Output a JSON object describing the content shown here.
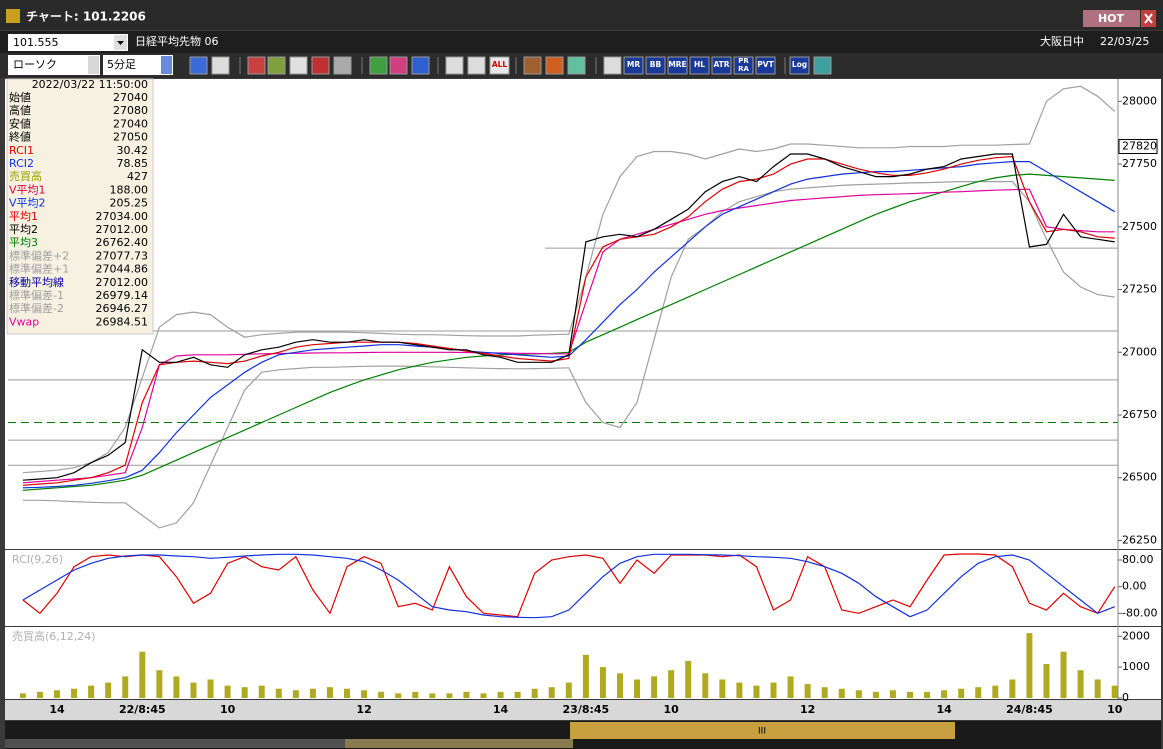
{
  "window": {
    "title": "チャート: 101.2206",
    "hot": "HOT"
  },
  "header": {
    "code": "101.555",
    "name": "日経平均先物 06",
    "market": "大阪日中",
    "date": "22/03/25"
  },
  "toolbar": {
    "chart_style": "ローソク",
    "period": "5分足",
    "buttons": [
      "ALL",
      "MR",
      "BB",
      "MRE",
      "HL",
      "ATR",
      "PR",
      "RA",
      "PVT",
      "Log"
    ]
  },
  "info_panel": {
    "datetime": "2022/03/22 11:50:00",
    "rows": [
      {
        "label": "始値",
        "value": "27040",
        "color": "#000000"
      },
      {
        "label": "高値",
        "value": "27080",
        "color": "#000000"
      },
      {
        "label": "安値",
        "value": "27040",
        "color": "#000000"
      },
      {
        "label": "終値",
        "value": "27050",
        "color": "#000000"
      },
      {
        "label": "RCI1",
        "value": "30.42",
        "color": "#e00000"
      },
      {
        "label": "RCI2",
        "value": "78.85",
        "color": "#1030e0"
      },
      {
        "label": "売買高",
        "value": "427",
        "color": "#a0a000"
      },
      {
        "label": "V平均1",
        "value": "188.00",
        "color": "#e00040"
      },
      {
        "label": "V平均2",
        "value": "205.25",
        "color": "#1030e0"
      },
      {
        "label": "平均1",
        "value": "27034.00",
        "color": "#e00000"
      },
      {
        "label": "平均2",
        "value": "27012.00",
        "color": "#000000"
      },
      {
        "label": "平均3",
        "value": "26762.40",
        "color": "#008000"
      },
      {
        "label": "標準偏差+2",
        "value": "27077.73",
        "color": "#a0a0a0"
      },
      {
        "label": "標準偏差+1",
        "value": "27044.86",
        "color": "#a0a0a0"
      },
      {
        "label": "移動平均線",
        "value": "27012.00",
        "color": "#0000a0"
      },
      {
        "label": "標準偏差-1",
        "value": "26979.14",
        "color": "#a0a0a0"
      },
      {
        "label": "標準偏差-2",
        "value": "26946.27",
        "color": "#a0a0a0"
      },
      {
        "label": "Vwap",
        "value": "26984.51",
        "color": "#e000a0"
      }
    ]
  },
  "chart_data": [
    {
      "type": "line",
      "ylim": [
        26220,
        28085
      ],
      "yticks": [
        26250,
        26500,
        26750,
        27000,
        27250,
        27500,
        27750,
        28000
      ],
      "price_marker": 27820,
      "hlines": [
        27415,
        27085,
        26890,
        26650,
        26550
      ],
      "dashed_line": 26720,
      "dashed_color": "#008000",
      "series": [
        {
          "color": "#a0a0a0",
          "values": [
            26520,
            26525,
            26530,
            26540,
            26560,
            26600,
            26700,
            26900,
            27100,
            27150,
            27160,
            27150,
            27100,
            27060,
            27070,
            27075,
            27080,
            27080,
            27080,
            27080,
            27078,
            27075,
            27072,
            27070,
            27070,
            27068,
            27066,
            27065,
            27065,
            27065,
            27068,
            27070,
            27072,
            27300,
            27550,
            27700,
            27780,
            27800,
            27800,
            27790,
            27770,
            27790,
            27810,
            27800,
            27810,
            27830,
            27830,
            27825,
            27820,
            27815,
            27815,
            27815,
            27820,
            27820,
            27820,
            27825,
            27825,
            27825,
            27828,
            27830,
            28000,
            28050,
            28060,
            28020,
            27960
          ]
        },
        {
          "color": "#a0a0a0",
          "values": [
            26410,
            26410,
            26408,
            26405,
            26402,
            26400,
            26400,
            26350,
            26300,
            26320,
            26400,
            26550,
            26700,
            26850,
            26920,
            26930,
            26935,
            26940,
            26940,
            26942,
            26944,
            26945,
            26945,
            26944,
            26942,
            26940,
            26938,
            26936,
            26935,
            26934,
            26935,
            26936,
            26938,
            26800,
            26720,
            26700,
            26800,
            27050,
            27300,
            27450,
            27500,
            27560,
            27600,
            27620,
            27640,
            27650,
            27655,
            27660,
            27665,
            27668,
            27670,
            27672,
            27675,
            27676,
            27678,
            27680,
            27680,
            27680,
            27680,
            27600,
            27450,
            27320,
            27260,
            27230,
            27220
          ]
        },
        {
          "color": "#008000",
          "values": [
            26450,
            26455,
            26460,
            26465,
            26470,
            26480,
            26490,
            26510,
            26540,
            26570,
            26600,
            26630,
            26660,
            26690,
            26720,
            26750,
            26780,
            26810,
            26840,
            26865,
            26890,
            26910,
            26930,
            26945,
            26960,
            26970,
            26980,
            26985,
            26990,
            26992,
            26994,
            26996,
            27000,
            27040,
            27070,
            27100,
            27130,
            27160,
            27190,
            27220,
            27250,
            27280,
            27310,
            27340,
            27370,
            27400,
            27430,
            27460,
            27490,
            27520,
            27550,
            27575,
            27600,
            27620,
            27640,
            27660,
            27680,
            27695,
            27705,
            27710,
            27705,
            27700,
            27695,
            27690,
            27685
          ]
        },
        {
          "color": "#e000a0",
          "values": [
            26480,
            26485,
            26490,
            26495,
            26500,
            26510,
            26520,
            26700,
            26950,
            26985,
            26990,
            26990,
            26990,
            26992,
            26994,
            26995,
            26996,
            26997,
            26998,
            26998,
            26999,
            27000,
            27000,
            27000,
            27000,
            27000,
            26999,
            26998,
            26997,
            26996,
            26995,
            26994,
            26994,
            27200,
            27400,
            27450,
            27470,
            27490,
            27510,
            27530,
            27550,
            27565,
            27575,
            27585,
            27595,
            27605,
            27610,
            27615,
            27620,
            27625,
            27628,
            27630,
            27632,
            27635,
            27638,
            27640,
            27643,
            27646,
            27648,
            27650,
            27500,
            27490,
            27485,
            27480,
            27480
          ]
        },
        {
          "color": "#1030e0",
          "values": [
            26460,
            26462,
            26465,
            26470,
            26478,
            26488,
            26500,
            26530,
            26600,
            26680,
            26750,
            26820,
            26870,
            26920,
            26960,
            26990,
            27000,
            27010,
            27015,
            27020,
            27025,
            27030,
            27030,
            27025,
            27020,
            27015,
            27005,
            27000,
            26995,
            26990,
            26985,
            26980,
            26985,
            27050,
            27120,
            27190,
            27250,
            27320,
            27380,
            27440,
            27500,
            27550,
            27580,
            27610,
            27640,
            27670,
            27690,
            27700,
            27710,
            27715,
            27720,
            27720,
            27725,
            27730,
            27735,
            27740,
            27750,
            27755,
            27760,
            27760,
            27720,
            27680,
            27640,
            27600,
            27560
          ]
        },
        {
          "color": "#e00000",
          "values": [
            26470,
            26475,
            26480,
            26490,
            26500,
            26520,
            26550,
            26800,
            26950,
            26960,
            26965,
            26960,
            26955,
            26965,
            26985,
            27000,
            27020,
            27030,
            27035,
            27040,
            27040,
            27040,
            27040,
            27035,
            27025,
            27015,
            27005,
            26995,
            26985,
            26975,
            26970,
            26965,
            26975,
            27300,
            27420,
            27450,
            27460,
            27470,
            27500,
            27540,
            27600,
            27650,
            27680,
            27690,
            27710,
            27750,
            27770,
            27770,
            27750,
            27730,
            27715,
            27705,
            27705,
            27715,
            27730,
            27750,
            27765,
            27775,
            27780,
            27600,
            27480,
            27490,
            27480,
            27460,
            27455
          ]
        },
        {
          "color": "#000000",
          "values": [
            26490,
            26495,
            26500,
            26520,
            26560,
            26590,
            26640,
            27010,
            26960,
            26960,
            26980,
            26950,
            26940,
            26990,
            27010,
            27020,
            27040,
            27050,
            27040,
            27040,
            27050,
            27040,
            27040,
            27030,
            27020,
            27010,
            27010,
            26990,
            26980,
            26960,
            26960,
            26960,
            26990,
            27440,
            27460,
            27470,
            27460,
            27490,
            27530,
            27570,
            27640,
            27680,
            27700,
            27680,
            27740,
            27790,
            27790,
            27770,
            27740,
            27720,
            27700,
            27700,
            27710,
            27730,
            27740,
            27770,
            27780,
            27790,
            27790,
            27420,
            27430,
            27550,
            27460,
            27450,
            27440
          ]
        }
      ]
    },
    {
      "type": "line",
      "title": "RCI(9,26)",
      "ylim": [
        -115,
        110
      ],
      "yticks": [
        {
          "value": 80,
          "label": "80.00"
        },
        {
          "value": 0,
          "label": "0.00"
        },
        {
          "value": -80,
          "label": "-80.00"
        }
      ],
      "series": [
        {
          "color": "#e00000",
          "values": [
            -40,
            -80,
            -20,
            60,
            90,
            95,
            90,
            95,
            90,
            30,
            -50,
            -20,
            70,
            90,
            60,
            50,
            90,
            -10,
            -80,
            60,
            90,
            70,
            -60,
            -50,
            -70,
            60,
            -30,
            -80,
            -85,
            -90,
            40,
            80,
            90,
            95,
            85,
            10,
            80,
            40,
            95,
            95,
            95,
            90,
            95,
            60,
            -70,
            -40,
            90,
            60,
            -70,
            -80,
            -60,
            -40,
            -60,
            20,
            95,
            98,
            98,
            95,
            60,
            -50,
            -70,
            -20,
            -60,
            -80,
            0
          ]
        },
        {
          "color": "#1030e0",
          "values": [
            -40,
            -10,
            20,
            50,
            70,
            85,
            92,
            95,
            95,
            92,
            90,
            85,
            88,
            92,
            95,
            97,
            97,
            95,
            90,
            85,
            75,
            50,
            20,
            -20,
            -60,
            -70,
            -75,
            -85,
            -90,
            -92,
            -93,
            -90,
            -70,
            -20,
            30,
            70,
            90,
            97,
            97,
            97,
            96,
            95,
            93,
            90,
            88,
            85,
            75,
            60,
            40,
            10,
            -30,
            -60,
            -90,
            -70,
            -20,
            30,
            70,
            90,
            95,
            80,
            40,
            0,
            -40,
            -80,
            -60
          ]
        }
      ]
    },
    {
      "type": "bar",
      "title": "売買高(6,12,24)",
      "ylim": [
        0,
        2300
      ],
      "yticks": [
        0,
        1000,
        2000
      ],
      "color": "#b0aa20",
      "categories": [
        null,
        null,
        "14",
        null,
        null,
        null,
        null,
        "22/8:45",
        null,
        null,
        null,
        null,
        "10",
        null,
        null,
        null,
        null,
        null,
        null,
        null,
        "12",
        null,
        null,
        null,
        null,
        null,
        null,
        null,
        "14",
        null,
        null,
        null,
        null,
        "23/8:45",
        null,
        null,
        null,
        null,
        "10",
        null,
        null,
        null,
        null,
        null,
        null,
        null,
        "12",
        null,
        null,
        null,
        null,
        null,
        null,
        null,
        "14",
        null,
        null,
        null,
        null,
        "24/8:45",
        null,
        null,
        null,
        null,
        "10"
      ],
      "values": [
        150,
        200,
        250,
        300,
        400,
        500,
        700,
        1500,
        900,
        700,
        500,
        600,
        400,
        350,
        400,
        300,
        250,
        300,
        350,
        300,
        250,
        200,
        150,
        200,
        150,
        150,
        200,
        150,
        200,
        200,
        300,
        350,
        500,
        1400,
        1000,
        800,
        600,
        700,
        900,
        1200,
        800,
        600,
        500,
        400,
        500,
        700,
        450,
        350,
        300,
        250,
        200,
        250,
        200,
        200,
        250,
        300,
        350,
        400,
        600,
        2100,
        1100,
        1500,
        900,
        600,
        400
      ]
    }
  ]
}
